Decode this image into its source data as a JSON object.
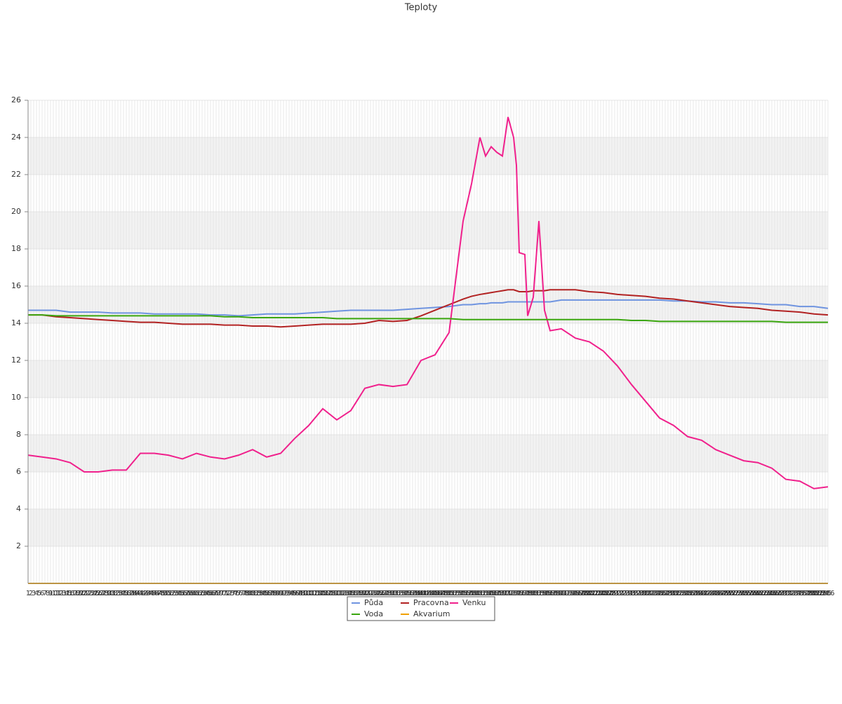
{
  "chart_data": {
    "type": "line",
    "title": "Teploty",
    "xlim": [
      1,
      286
    ],
    "ylim": [
      0,
      26
    ],
    "yticks": [
      2,
      4,
      6,
      8,
      10,
      12,
      14,
      16,
      18,
      20,
      22,
      24,
      26
    ],
    "grid": true,
    "legend": "bottom",
    "xticks": [
      1,
      2,
      3,
      4,
      5,
      6,
      7,
      8,
      9,
      10,
      11,
      12,
      13,
      14,
      15,
      16,
      17,
      18,
      19,
      20,
      21,
      22,
      23,
      24,
      25,
      26,
      27,
      28,
      29,
      30,
      31,
      32,
      33,
      34,
      35,
      36,
      37,
      38,
      39,
      40,
      41,
      42,
      43,
      44,
      45,
      46,
      47,
      48,
      49,
      50,
      51,
      52,
      53,
      54,
      55,
      56,
      57,
      58,
      59,
      60,
      61,
      62,
      63,
      64,
      65,
      66,
      67,
      68,
      69,
      70,
      71,
      72,
      73,
      74,
      75,
      76,
      77,
      78,
      79,
      80,
      81,
      82,
      83,
      84,
      85,
      86,
      87,
      88,
      89,
      90,
      91,
      92,
      93,
      94,
      95,
      96,
      97,
      98,
      99,
      100,
      101,
      102,
      103,
      104,
      105,
      106,
      107,
      108,
      109,
      110,
      111,
      112,
      113,
      114,
      115,
      116,
      117,
      118,
      119,
      120,
      121,
      122,
      123,
      124,
      125,
      126,
      127,
      128,
      129,
      130,
      131,
      132,
      133,
      134,
      135,
      136,
      137,
      138,
      139,
      140,
      141,
      142,
      143,
      144,
      145,
      146,
      147,
      148,
      149,
      150,
      151,
      152,
      153,
      154,
      155,
      156,
      157,
      158,
      159,
      160,
      161,
      162,
      163,
      164,
      165,
      166,
      167,
      168,
      169,
      170,
      171,
      172,
      173,
      174,
      175,
      176,
      177,
      178,
      179,
      180,
      181,
      182,
      183,
      184,
      185,
      186,
      187,
      188,
      189,
      190,
      191,
      192,
      193,
      194,
      195,
      196,
      197,
      198,
      199,
      200,
      201,
      202,
      203,
      204,
      205,
      206,
      207,
      208,
      209,
      210,
      211,
      212,
      213,
      214,
      215,
      216,
      217,
      218,
      219,
      220,
      221,
      222,
      223,
      224,
      225,
      226,
      227,
      228,
      229,
      230,
      231,
      232,
      233,
      234,
      235,
      236,
      237,
      238,
      239,
      240,
      241,
      242,
      243,
      244,
      245,
      246,
      247,
      248,
      249,
      250,
      251,
      252,
      253,
      254,
      255,
      256,
      257,
      258,
      259,
      260,
      261,
      262,
      263,
      264,
      265,
      266,
      267,
      268,
      269,
      270,
      271,
      272,
      273,
      274,
      275,
      276,
      277,
      278,
      279,
      280,
      281,
      282,
      283,
      284,
      285,
      286
    ],
    "x": [
      1,
      6,
      11,
      16,
      21,
      26,
      31,
      36,
      41,
      46,
      51,
      56,
      61,
      66,
      71,
      76,
      81,
      86,
      91,
      96,
      101,
      106,
      111,
      116,
      121,
      126,
      131,
      136,
      141,
      146,
      151,
      156,
      159,
      162,
      164,
      166,
      168,
      170,
      172,
      174,
      175,
      176,
      178,
      179,
      181,
      183,
      185,
      187,
      191,
      196,
      201,
      206,
      211,
      216,
      221,
      226,
      231,
      236,
      241,
      246,
      251,
      256,
      261,
      266,
      271,
      276,
      281,
      286
    ],
    "series": [
      {
        "name": "Půda",
        "color": "#6f94e0",
        "values": [
          14.7,
          14.7,
          14.7,
          14.6,
          14.6,
          14.6,
          14.55,
          14.55,
          14.55,
          14.5,
          14.5,
          14.5,
          14.5,
          14.45,
          14.45,
          14.4,
          14.45,
          14.5,
          14.5,
          14.5,
          14.55,
          14.6,
          14.65,
          14.7,
          14.7,
          14.7,
          14.7,
          14.75,
          14.8,
          14.85,
          14.9,
          15.0,
          15.0,
          15.05,
          15.05,
          15.1,
          15.1,
          15.1,
          15.15,
          15.15,
          15.15,
          15.15,
          15.15,
          15.15,
          15.15,
          15.15,
          15.15,
          15.15,
          15.25,
          15.25,
          15.25,
          15.25,
          15.25,
          15.25,
          15.25,
          15.25,
          15.2,
          15.2,
          15.15,
          15.15,
          15.1,
          15.1,
          15.05,
          15.0,
          15.0,
          14.9,
          14.9,
          14.8
        ]
      },
      {
        "name": "Pracovna",
        "color": "#b22222",
        "values": [
          14.45,
          14.45,
          14.35,
          14.3,
          14.25,
          14.2,
          14.15,
          14.1,
          14.05,
          14.05,
          14.0,
          13.95,
          13.95,
          13.95,
          13.9,
          13.9,
          13.85,
          13.85,
          13.8,
          13.85,
          13.9,
          13.95,
          13.95,
          13.95,
          14.0,
          14.15,
          14.1,
          14.15,
          14.4,
          14.7,
          15.0,
          15.3,
          15.45,
          15.55,
          15.6,
          15.65,
          15.7,
          15.75,
          15.8,
          15.8,
          15.75,
          15.7,
          15.7,
          15.7,
          15.75,
          15.75,
          15.75,
          15.8,
          15.8,
          15.8,
          15.7,
          15.65,
          15.55,
          15.5,
          15.45,
          15.35,
          15.3,
          15.2,
          15.1,
          15.0,
          14.9,
          14.85,
          14.8,
          14.7,
          14.65,
          14.6,
          14.5,
          14.45
        ]
      },
      {
        "name": "Venku",
        "color": "#f0208c",
        "values": [
          6.9,
          6.8,
          6.7,
          6.5,
          6.0,
          6.0,
          6.1,
          6.1,
          7.0,
          7.0,
          6.9,
          6.7,
          7.0,
          6.8,
          6.7,
          6.9,
          7.2,
          6.8,
          7.0,
          7.8,
          8.5,
          9.4,
          8.8,
          9.3,
          10.5,
          10.7,
          10.6,
          10.7,
          12.0,
          12.3,
          13.5,
          19.5,
          21.5,
          24.0,
          23.0,
          23.5,
          23.2,
          23.0,
          25.1,
          24.0,
          22.5,
          17.8,
          17.7,
          14.4,
          15.4,
          19.5,
          14.7,
          13.6,
          13.7,
          13.2,
          13.0,
          12.5,
          11.7,
          10.7,
          9.8,
          8.9,
          8.5,
          7.9,
          7.7,
          7.2,
          6.9,
          6.6,
          6.5,
          6.2,
          5.6,
          5.5,
          5.1,
          5.2
        ]
      },
      {
        "name": "Voda",
        "color": "#3aa60e",
        "values": [
          14.45,
          14.45,
          14.4,
          14.4,
          14.4,
          14.4,
          14.4,
          14.4,
          14.4,
          14.4,
          14.4,
          14.4,
          14.4,
          14.4,
          14.35,
          14.35,
          14.3,
          14.3,
          14.3,
          14.3,
          14.3,
          14.3,
          14.25,
          14.25,
          14.25,
          14.25,
          14.25,
          14.25,
          14.25,
          14.25,
          14.25,
          14.2,
          14.2,
          14.2,
          14.2,
          14.2,
          14.2,
          14.2,
          14.2,
          14.2,
          14.2,
          14.2,
          14.2,
          14.2,
          14.2,
          14.2,
          14.2,
          14.2,
          14.2,
          14.2,
          14.2,
          14.2,
          14.2,
          14.15,
          14.15,
          14.1,
          14.1,
          14.1,
          14.1,
          14.1,
          14.1,
          14.1,
          14.1,
          14.1,
          14.05,
          14.05,
          14.05,
          14.05
        ]
      },
      {
        "name": "Akvarium",
        "color": "#f0a000",
        "values": [
          0,
          0,
          0,
          0,
          0,
          0,
          0,
          0,
          0,
          0,
          0,
          0,
          0,
          0,
          0,
          0,
          0,
          0,
          0,
          0,
          0,
          0,
          0,
          0,
          0,
          0,
          0,
          0,
          0,
          0,
          0,
          0,
          0,
          0,
          0,
          0,
          0,
          0,
          0,
          0,
          0,
          0,
          0,
          0,
          0,
          0,
          0,
          0,
          0,
          0,
          0,
          0,
          0,
          0,
          0,
          0,
          0,
          0,
          0,
          0,
          0,
          0,
          0,
          0,
          0,
          0,
          0,
          0
        ]
      }
    ]
  }
}
